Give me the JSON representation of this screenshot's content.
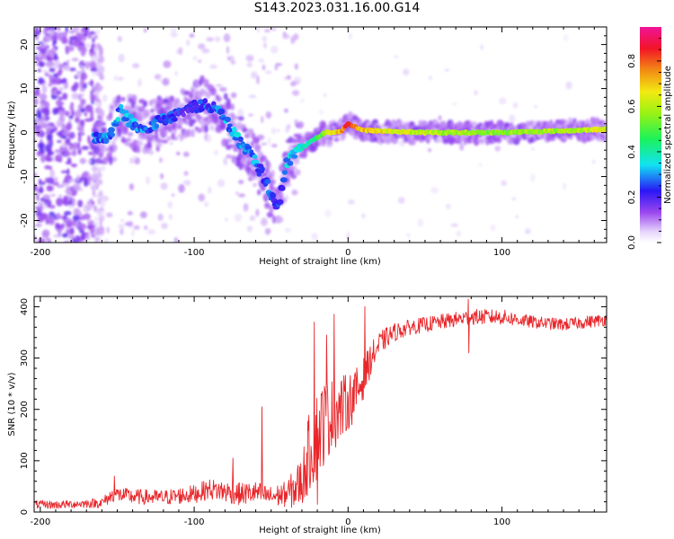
{
  "figure": {
    "title": "S143.2023.031.16.00.G14"
  },
  "chart_data": [
    {
      "type": "heatmap",
      "xlabel": "Height of straight line (km)",
      "ylabel": "Frequency (Hz)",
      "xlim": [
        -204,
        168
      ],
      "ylim": [
        -25,
        24
      ],
      "x_ticks": [
        -200,
        -100,
        0,
        100
      ],
      "y_ticks": [
        -20,
        -10,
        0,
        10,
        20
      ],
      "colorbar": {
        "label": "Normalized spectral amplitude",
        "range": [
          0,
          0.95
        ],
        "ticks": [
          0.0,
          0.2,
          0.4,
          0.6,
          0.8
        ],
        "colormap": "white-violet-blue-cyan-green-yellow-red-magenta"
      },
      "ridge": [
        {
          "x": -162,
          "y": -1.5,
          "amp": 0.28
        },
        {
          "x": -155,
          "y": -1.5,
          "amp": 0.3
        },
        {
          "x": -148,
          "y": 5,
          "amp": 0.3
        },
        {
          "x": -140,
          "y": 2,
          "amp": 0.3
        },
        {
          "x": -130,
          "y": 1,
          "amp": 0.25
        },
        {
          "x": -120,
          "y": 3,
          "amp": 0.25
        },
        {
          "x": -110,
          "y": 4,
          "amp": 0.22
        },
        {
          "x": -100,
          "y": 6,
          "amp": 0.22
        },
        {
          "x": -90,
          "y": 6.5,
          "amp": 0.25
        },
        {
          "x": -82,
          "y": 4,
          "amp": 0.28
        },
        {
          "x": -75,
          "y": 0,
          "amp": 0.3
        },
        {
          "x": -68,
          "y": -3,
          "amp": 0.3
        },
        {
          "x": -60,
          "y": -7,
          "amp": 0.28
        },
        {
          "x": -55,
          "y": -10,
          "amp": 0.25
        },
        {
          "x": -50,
          "y": -14,
          "amp": 0.25
        },
        {
          "x": -45,
          "y": -17.5,
          "amp": 0.22
        },
        {
          "x": -40,
          "y": -6.5,
          "amp": 0.32
        },
        {
          "x": -30,
          "y": -3.5,
          "amp": 0.35
        },
        {
          "x": -22,
          "y": -1.5,
          "amp": 0.4
        },
        {
          "x": -15,
          "y": 0,
          "amp": 0.6
        },
        {
          "x": -5,
          "y": 0.2,
          "amp": 0.7
        },
        {
          "x": 0,
          "y": 2,
          "amp": 0.85
        },
        {
          "x": 10,
          "y": 0.5,
          "amp": 0.7
        },
        {
          "x": 50,
          "y": 0,
          "amp": 0.6
        },
        {
          "x": 100,
          "y": 0,
          "amp": 0.55
        },
        {
          "x": 150,
          "y": 0.5,
          "amp": 0.6
        },
        {
          "x": 168,
          "y": 0.8,
          "amp": 0.65
        }
      ]
    },
    {
      "type": "line",
      "xlabel": "Height of straight line (km)",
      "ylabel": "SNR (10 * v/v)",
      "xlim": [
        -204,
        168
      ],
      "ylim": [
        0,
        420
      ],
      "x_ticks": [
        -200,
        -100,
        0,
        100
      ],
      "y_ticks": [
        0,
        100,
        200,
        300,
        400
      ],
      "line_color": "#e8262a",
      "series": [
        {
          "x": [
            -204,
            -190,
            -175,
            -160,
            -152,
            -140,
            -120,
            -100,
            -90,
            -80,
            -70,
            -60,
            -50,
            -40,
            -35,
            -30,
            -25,
            -20,
            -15,
            -10,
            -5,
            0,
            5,
            10,
            15,
            20,
            25,
            30,
            40,
            60,
            80,
            100,
            120,
            140,
            160,
            168
          ],
          "y": [
            15,
            14,
            16,
            18,
            35,
            30,
            28,
            35,
            45,
            40,
            35,
            38,
            30,
            35,
            45,
            60,
            120,
            150,
            180,
            190,
            200,
            215,
            230,
            260,
            300,
            325,
            340,
            350,
            360,
            370,
            380,
            380,
            370,
            365,
            372,
            375
          ],
          "noise": [
            8,
            8,
            8,
            10,
            15,
            15,
            15,
            18,
            20,
            22,
            22,
            22,
            20,
            25,
            40,
            50,
            80,
            90,
            85,
            70,
            65,
            55,
            50,
            40,
            30,
            25,
            20,
            18,
            15,
            15,
            15,
            15,
            12,
            12,
            12,
            12
          ],
          "spikes": [
            {
              "x": -152,
              "y": 70
            },
            {
              "x": -75,
              "y": 105
            },
            {
              "x": -56,
              "y": 205
            },
            {
              "x": -22,
              "y": 370
            },
            {
              "x": -20,
              "y": 15
            },
            {
              "x": -14,
              "y": 345
            },
            {
              "x": -9,
              "y": 385
            },
            {
              "x": 11,
              "y": 400
            },
            {
              "x": 78,
              "y": 415
            },
            {
              "x": 78.5,
              "y": 310
            }
          ]
        }
      ]
    }
  ]
}
